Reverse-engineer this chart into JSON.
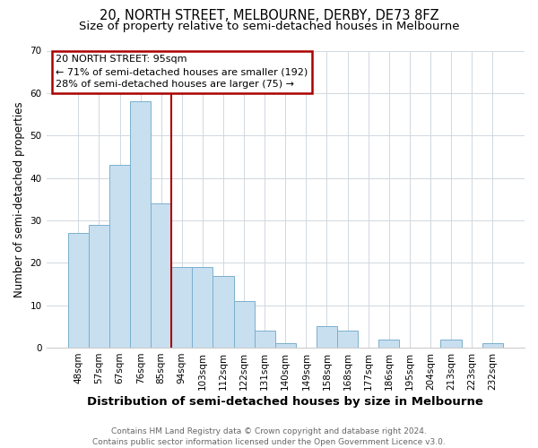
{
  "title": "20, NORTH STREET, MELBOURNE, DERBY, DE73 8FZ",
  "subtitle": "Size of property relative to semi-detached houses in Melbourne",
  "xlabel": "Distribution of semi-detached houses by size in Melbourne",
  "ylabel": "Number of semi-detached properties",
  "bar_labels": [
    "48sqm",
    "57sqm",
    "67sqm",
    "76sqm",
    "85sqm",
    "94sqm",
    "103sqm",
    "112sqm",
    "122sqm",
    "131sqm",
    "140sqm",
    "149sqm",
    "158sqm",
    "168sqm",
    "177sqm",
    "186sqm",
    "195sqm",
    "204sqm",
    "213sqm",
    "223sqm",
    "232sqm"
  ],
  "bar_values": [
    27,
    29,
    43,
    58,
    34,
    19,
    19,
    17,
    11,
    4,
    1,
    0,
    5,
    4,
    0,
    2,
    0,
    0,
    2,
    0,
    1
  ],
  "bar_color": "#c8dff0",
  "bar_edge_color": "#7ab0cc",
  "vline_color": "#aa0000",
  "annotation_title": "20 NORTH STREET: 95sqm",
  "annotation_line1": "← 71% of semi-detached houses are smaller (192)",
  "annotation_line2": "28% of semi-detached houses are larger (75) →",
  "annotation_box_color": "#ffffff",
  "annotation_box_edge": "#aa0000",
  "ylim": [
    0,
    70
  ],
  "yticks": [
    0,
    10,
    20,
    30,
    40,
    50,
    60,
    70
  ],
  "footer1": "Contains HM Land Registry data © Crown copyright and database right 2024.",
  "footer2": "Contains public sector information licensed under the Open Government Licence v3.0.",
  "title_fontsize": 10.5,
  "subtitle_fontsize": 9.5,
  "ylabel_fontsize": 8.5,
  "xlabel_fontsize": 9.5,
  "tick_fontsize": 7.5,
  "footer_fontsize": 6.5
}
